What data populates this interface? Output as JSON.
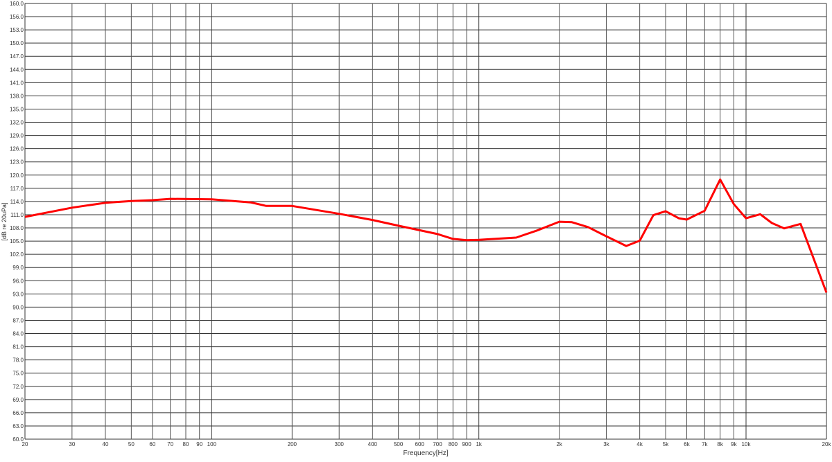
{
  "chart_data": {
    "type": "line",
    "title": "",
    "xlabel": "Frequency[Hz]",
    "ylabel": "[dB re 20uPa]",
    "x_scale": "log",
    "xlim": [
      20,
      20000
    ],
    "ylim": [
      60,
      160
    ],
    "grid": true,
    "line_color": "#ff0000",
    "y_ticks": [
      "60.0",
      "63.0",
      "66.0",
      "69.0",
      "72.0",
      "75.0",
      "78.0",
      "81.0",
      "84.0",
      "87.0",
      "90.0",
      "93.0",
      "96.0",
      "99.0",
      "102.0",
      "105.0",
      "108.0",
      "111.0",
      "114.0",
      "117.0",
      "120.0",
      "123.0",
      "126.0",
      "129.0",
      "132.0",
      "135.0",
      "138.0",
      "141.0",
      "144.0",
      "147.0",
      "150.0",
      "153.0",
      "156.0",
      "160.0"
    ],
    "x_ticks": [
      {
        "value": 20,
        "label": "20"
      },
      {
        "value": 30,
        "label": "30"
      },
      {
        "value": 40,
        "label": "40"
      },
      {
        "value": 50,
        "label": "50"
      },
      {
        "value": 60,
        "label": "60"
      },
      {
        "value": 70,
        "label": "70"
      },
      {
        "value": 80,
        "label": "80"
      },
      {
        "value": 90,
        "label": "90"
      },
      {
        "value": 100,
        "label": "100"
      },
      {
        "value": 200,
        "label": "200"
      },
      {
        "value": 300,
        "label": "300"
      },
      {
        "value": 400,
        "label": "400"
      },
      {
        "value": 500,
        "label": "500"
      },
      {
        "value": 600,
        "label": "600"
      },
      {
        "value": 700,
        "label": "700"
      },
      {
        "value": 800,
        "label": "800"
      },
      {
        "value": 900,
        "label": "900"
      },
      {
        "value": 1000,
        "label": "1k"
      },
      {
        "value": 2000,
        "label": "2k"
      },
      {
        "value": 3000,
        "label": "3k"
      },
      {
        "value": 4000,
        "label": "4k"
      },
      {
        "value": 5000,
        "label": "5k"
      },
      {
        "value": 6000,
        "label": "6k"
      },
      {
        "value": 7000,
        "label": "7k"
      },
      {
        "value": 8000,
        "label": "8k"
      },
      {
        "value": 9000,
        "label": "9k"
      },
      {
        "value": 10000,
        "label": "10k"
      },
      {
        "value": 20000,
        "label": "20k"
      }
    ],
    "series": [
      {
        "x": [
          20,
          30,
          40,
          50,
          60,
          70,
          100,
          140,
          160,
          200,
          300,
          400,
          500,
          700,
          800,
          900,
          1000,
          1380,
          1650,
          2000,
          2230,
          2560,
          3000,
          3560,
          4000,
          4500,
          5000,
          5600,
          6000,
          7000,
          8000,
          9000,
          10000,
          11300,
          12500,
          13900,
          16000,
          20000
        ],
        "y": [
          110.5,
          112.6,
          113.7,
          114.1,
          114.3,
          114.6,
          114.5,
          113.8,
          113.0,
          113.0,
          111.2,
          109.8,
          108.5,
          106.6,
          105.5,
          105.2,
          105.3,
          105.8,
          107.4,
          109.4,
          109.3,
          108.2,
          106.1,
          103.9,
          105.1,
          110.9,
          111.8,
          110.2,
          109.9,
          111.9,
          119.0,
          113.4,
          110.2,
          111.1,
          109.1,
          107.9,
          108.9,
          93.3
        ]
      }
    ]
  }
}
